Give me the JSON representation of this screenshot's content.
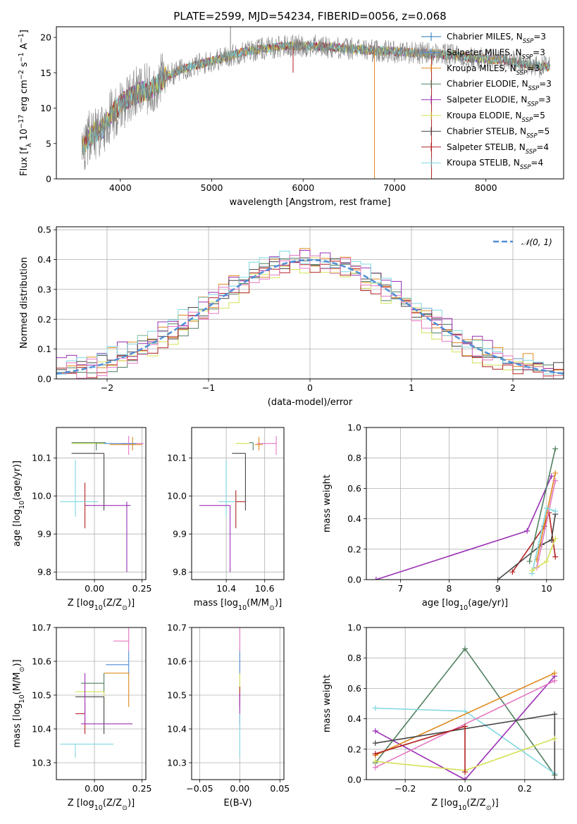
{
  "colors": {
    "chabrier_miles": "#1f77b4",
    "salpeter_miles": "#4f8ed6",
    "kroupa_miles": "#e08a1e",
    "chabrier_elodie": "#4f7f5f",
    "salpeter_elodie": "#9b30b5",
    "kroupa_elodie": "#d4e157",
    "chabrier_stelib": "#474747",
    "salpeter_stelib": "#b22222",
    "kroupa_stelib": "#7fd8e0",
    "pink": "#e377c2",
    "grey": "#7f7f7f",
    "normal": "#4f8ed6",
    "grid": "#b0b0b0"
  },
  "chart_data": [
    {
      "id": "spectrum",
      "type": "line",
      "title": "PLATE=2599, MJD=54234, FIBERID=0056, z=0.068",
      "xlabel": "wavelength [Angstrom, rest frame]",
      "ylabel": "Flux [f_λ 10^-17 erg cm^-2 s^-1 A^-1]",
      "xlim": [
        3300,
        8850
      ],
      "ylim": [
        0,
        21.5
      ],
      "xticks": [
        4000,
        5000,
        6000,
        7000,
        8000
      ],
      "yticks": [
        0,
        5,
        10,
        15,
        20
      ],
      "grid": false,
      "legend_position": "top-right",
      "legend": [
        {
          "name": "Chabrier MILES",
          "sub": "SSP",
          "n": "3",
          "color": "chabrier_miles"
        },
        {
          "name": "Salpeter MILES",
          "sub": "SSP",
          "n": "3",
          "color": "salpeter_miles"
        },
        {
          "name": "Kroupa MILES",
          "sub": "SSP",
          "n": "3",
          "color": "kroupa_miles"
        },
        {
          "name": "Chabrier ELODIE",
          "sub": "SSP",
          "n": "3",
          "color": "chabrier_elodie"
        },
        {
          "name": "Salpeter ELODIE",
          "sub": "SSP",
          "n": "3",
          "color": "salpeter_elodie"
        },
        {
          "name": "Kroupa ELODIE",
          "sub": "SSP",
          "n": "5",
          "color": "kroupa_elodie"
        },
        {
          "name": "Chabrier STELIB",
          "sub": "SSP",
          "n": "5",
          "color": "chabrier_stelib"
        },
        {
          "name": "Salpeter STELIB",
          "sub": "SSP",
          "n": "4",
          "color": "salpeter_stelib"
        },
        {
          "name": "Kroupa STELIB",
          "sub": "SSP",
          "n": "4",
          "color": "kroupa_stelib"
        }
      ],
      "continuum": [
        [
          3580,
          4.5
        ],
        [
          3700,
          6.5
        ],
        [
          3800,
          7.0
        ],
        [
          3900,
          9.0
        ],
        [
          4000,
          10.5
        ],
        [
          4100,
          11.5
        ],
        [
          4200,
          12.2
        ],
        [
          4300,
          12.5
        ],
        [
          4400,
          13.3
        ],
        [
          4500,
          14.5
        ],
        [
          4700,
          15.6
        ],
        [
          4900,
          16.3
        ],
        [
          5100,
          17.0
        ],
        [
          5300,
          17.8
        ],
        [
          5500,
          18.3
        ],
        [
          5800,
          18.8
        ],
        [
          6100,
          18.8
        ],
        [
          6400,
          18.5
        ],
        [
          6700,
          18.2
        ],
        [
          7000,
          18.0
        ],
        [
          7300,
          17.8
        ],
        [
          7600,
          17.5
        ],
        [
          7900,
          17.0
        ],
        [
          8200,
          16.8
        ],
        [
          8500,
          16.0
        ],
        [
          8700,
          15.8
        ]
      ],
      "absorption_lines": [
        {
          "x": 5205,
          "top": 21.5,
          "color": "grey"
        },
        {
          "x": 5890,
          "top": 15.0,
          "color": "salpeter_stelib"
        },
        {
          "x": 6780,
          "top": 0,
          "color": "kroupa_miles"
        },
        {
          "x": 7405,
          "top": 0,
          "color": "salpeter_stelib"
        }
      ]
    },
    {
      "id": "residuals",
      "type": "histogram",
      "xlabel": "(data-model)/error",
      "ylabel": "Normed distribution",
      "xlim": [
        -2.5,
        2.5
      ],
      "ylim": [
        0,
        0.51
      ],
      "xticks": [
        -2,
        -1,
        0,
        1,
        2
      ],
      "yticks": [
        0.0,
        0.1,
        0.2,
        0.3,
        0.4,
        0.5
      ],
      "grid": true,
      "legend_position": "top-right",
      "reference_curve": {
        "label": "𝒩(0, 1)",
        "mean": 0,
        "sigma": 1,
        "style": "dashed",
        "color": "normal"
      },
      "bin_width": 0.1,
      "series": [
        {
          "color": "kroupa_miles",
          "offset": 0.012
        },
        {
          "color": "chabrier_elodie",
          "offset": -0.008
        },
        {
          "color": "salpeter_elodie",
          "offset": 0.02
        },
        {
          "color": "kroupa_elodie",
          "offset": -0.018
        },
        {
          "color": "chabrier_stelib",
          "offset": 0.005
        },
        {
          "color": "salpeter_stelib",
          "offset": -0.012
        },
        {
          "color": "kroupa_stelib",
          "offset": 0.016
        },
        {
          "color": "pink",
          "offset": -0.004
        }
      ]
    },
    {
      "id": "age_vs_Z",
      "type": "errorbar",
      "xlabel": "Z [log10(Z/Z☉)]",
      "ylabel": "age [log10(age/yr)]",
      "xlim": [
        -0.2,
        0.27
      ],
      "ylim": [
        9.78,
        10.18
      ],
      "xticks": [
        0.0,
        0.25
      ],
      "yticks": [
        9.8,
        9.9,
        10.0,
        10.1
      ],
      "grid": true,
      "points": [
        {
          "x": 0.2,
          "xerr": [
            0.12,
            0.05
          ],
          "y": 10.135,
          "yerr": [
            0.015,
            0.02
          ],
          "color": "kroupa_miles"
        },
        {
          "x": 0.18,
          "xerr": [
            0.04,
            0.08
          ],
          "y": 10.138,
          "yerr": [
            0.03,
            0.02
          ],
          "color": "pink"
        },
        {
          "x": 0.1,
          "xerr": [
            0.08,
            0.12
          ],
          "y": 10.138,
          "yerr": [
            0.0,
            0.0
          ],
          "color": "salpeter_miles"
        },
        {
          "x": 0.05,
          "xerr": [
            0.17,
            0.0
          ],
          "y": 10.138,
          "yerr": [
            0.0,
            0.0
          ],
          "color": "kroupa_elodie"
        },
        {
          "x": 0.01,
          "xerr": [
            0.13,
            0.05
          ],
          "y": 10.14,
          "yerr": [
            0.02,
            0.0
          ],
          "color": "chabrier_elodie"
        },
        {
          "x": 0.05,
          "xerr": [
            0.17,
            0.0
          ],
          "y": 10.112,
          "yerr": [
            0.15,
            0.0
          ],
          "color": "chabrier_stelib"
        },
        {
          "x": -0.05,
          "xerr": [
            0.0,
            0.0
          ],
          "y": 9.975,
          "yerr": [
            0.06,
            0.06
          ],
          "color": "salpeter_stelib"
        },
        {
          "x": -0.1,
          "xerr": [
            0.08,
            0.12
          ],
          "y": 9.985,
          "yerr": [
            0.04,
            0.11
          ],
          "color": "kroupa_stelib"
        },
        {
          "x": 0.17,
          "xerr": [
            0.22,
            0.02
          ],
          "y": 9.975,
          "yerr": [
            0.175,
            0.01
          ],
          "color": "salpeter_elodie"
        }
      ]
    },
    {
      "id": "age_vs_mass",
      "type": "errorbar",
      "xlabel": "mass [log10(M/M☉)]",
      "ylabel": "",
      "xlim": [
        10.22,
        10.7
      ],
      "ylim": [
        9.78,
        10.18
      ],
      "xticks": [
        10.4,
        10.6
      ],
      "yticks": [
        9.8,
        9.9,
        10.0,
        10.1
      ],
      "grid": true,
      "points": [
        {
          "x": 10.57,
          "xerr": [
            0.02,
            0.02
          ],
          "y": 10.135,
          "yerr": [
            0.015,
            0.02
          ],
          "color": "kroupa_miles"
        },
        {
          "x": 10.66,
          "xerr": [
            0.1,
            0.0
          ],
          "y": 10.138,
          "yerr": [
            0.03,
            0.02
          ],
          "color": "pink"
        },
        {
          "x": 10.59,
          "xerr": [
            0.0,
            0.0
          ],
          "y": 10.138,
          "yerr": [
            0.0,
            0.0
          ],
          "color": "salpeter_miles"
        },
        {
          "x": 10.52,
          "xerr": [
            0.07,
            0.0
          ],
          "y": 10.138,
          "yerr": [
            0.0,
            0.0
          ],
          "color": "kroupa_elodie"
        },
        {
          "x": 10.54,
          "xerr": [
            0.02,
            0.0
          ],
          "y": 10.14,
          "yerr": [
            0.02,
            0.0
          ],
          "color": "chabrier_elodie"
        },
        {
          "x": 10.5,
          "xerr": [
            0.07,
            0.0
          ],
          "y": 10.112,
          "yerr": [
            0.15,
            0.0
          ],
          "color": "chabrier_stelib"
        },
        {
          "x": 10.45,
          "xerr": [
            0.0,
            0.05
          ],
          "y": 9.985,
          "yerr": [
            0.07,
            0.03
          ],
          "color": "salpeter_stelib"
        },
        {
          "x": 10.4,
          "xerr": [
            0.04,
            0.05
          ],
          "y": 9.985,
          "yerr": [
            0.04,
            0.11
          ],
          "color": "kroupa_stelib"
        },
        {
          "x": 10.42,
          "xerr": [
            0.16,
            0.0
          ],
          "y": 9.975,
          "yerr": [
            0.175,
            0.0
          ],
          "color": "salpeter_elodie"
        }
      ]
    },
    {
      "id": "massweight_vs_age",
      "type": "line",
      "xlabel": "age [log10(age/yr)]",
      "ylabel": "mass weight",
      "xlim": [
        6.3,
        10.35
      ],
      "ylim": [
        0,
        1.0
      ],
      "xticks": [
        7,
        8,
        9,
        10
      ],
      "yticks": [
        0.0,
        0.2,
        0.4,
        0.6,
        0.8,
        1.0
      ],
      "grid": true,
      "series": [
        {
          "color": "salpeter_elodie",
          "x": [
            6.5,
            9.6,
            10.1
          ],
          "y": [
            0.0,
            0.32,
            0.68
          ]
        },
        {
          "color": "salpeter_stelib",
          "x": [
            9.3,
            9.95,
            10.05,
            10.18
          ],
          "y": [
            0.05,
            0.35,
            0.44,
            0.15
          ]
        },
        {
          "color": "chabrier_stelib",
          "x": [
            9.0,
            9.9,
            10.1,
            10.18
          ],
          "y": [
            0.0,
            0.23,
            0.26,
            0.43
          ]
        },
        {
          "color": "chabrier_elodie",
          "x": [
            9.65,
            10.18
          ],
          "y": [
            0.12,
            0.86
          ]
        },
        {
          "color": "kroupa_miles",
          "x": [
            9.8,
            10.18
          ],
          "y": [
            0.13,
            0.7
          ]
        },
        {
          "color": "pink",
          "x": [
            9.8,
            10.18
          ],
          "y": [
            0.08,
            0.65
          ]
        },
        {
          "color": "kroupa_stelib",
          "x": [
            9.7,
            10.0,
            10.18
          ],
          "y": [
            0.04,
            0.47,
            0.45
          ]
        },
        {
          "color": "kroupa_elodie",
          "x": [
            9.7,
            10.0,
            10.18
          ],
          "y": [
            0.06,
            0.12,
            0.27
          ]
        }
      ]
    },
    {
      "id": "mass_vs_Z",
      "type": "errorbar",
      "xlabel": "Z [log10(Z/Z☉)]",
      "ylabel": "mass [log10(M/M☉)]",
      "xlim": [
        -0.2,
        0.27
      ],
      "ylim": [
        10.25,
        10.7
      ],
      "xticks": [
        0.0,
        0.25
      ],
      "yticks": [
        10.3,
        10.4,
        10.5,
        10.6,
        10.7
      ],
      "grid": true,
      "points": [
        {
          "x": 0.18,
          "xerr": [
            0.08,
            0.0
          ],
          "y": 10.66,
          "yerr": [
            0.03,
            0.04
          ],
          "color": "pink"
        },
        {
          "x": 0.18,
          "xerr": [
            0.12,
            0.0
          ],
          "y": 10.59,
          "yerr": [
            0.03,
            0.04
          ],
          "color": "salpeter_miles"
        },
        {
          "x": 0.18,
          "xerr": [
            0.13,
            0.0
          ],
          "y": 10.565,
          "yerr": [
            0.1,
            0.0
          ],
          "color": "kroupa_miles"
        },
        {
          "x": 0.05,
          "xerr": [
            0.12,
            0.0
          ],
          "y": 10.535,
          "yerr": [
            0.03,
            0.03
          ],
          "color": "chabrier_elodie"
        },
        {
          "x": 0.05,
          "xerr": [
            0.15,
            0.0
          ],
          "y": 10.51,
          "yerr": [
            0.03,
            0.0
          ],
          "color": "kroupa_elodie"
        },
        {
          "x": 0.05,
          "xerr": [
            0.15,
            0.0
          ],
          "y": 10.495,
          "yerr": [
            0.11,
            0.0
          ],
          "color": "chabrier_stelib"
        },
        {
          "x": -0.05,
          "xerr": [
            0.05,
            0.0
          ],
          "y": 10.445,
          "yerr": [
            0.06,
            0.03
          ],
          "color": "salpeter_stelib"
        },
        {
          "x": -0.05,
          "xerr": [
            0.02,
            0.25
          ],
          "y": 10.415,
          "yerr": [
            0.0,
            0.15
          ],
          "color": "salpeter_elodie"
        },
        {
          "x": -0.1,
          "xerr": [
            0.08,
            0.2
          ],
          "y": 10.355,
          "yerr": [
            0.04,
            0.0
          ],
          "color": "kroupa_stelib"
        }
      ]
    },
    {
      "id": "mass_vs_ebv",
      "type": "errorbar",
      "xlabel": "E(B-V)",
      "ylabel": "",
      "xlim": [
        -0.06,
        0.055
      ],
      "ylim": [
        10.25,
        10.7
      ],
      "xticks": [
        -0.05,
        0.0,
        0.05
      ],
      "yticks": [
        10.3,
        10.4,
        10.5,
        10.6,
        10.7
      ],
      "grid": true,
      "points": [
        {
          "x": 0.0,
          "xerr": [
            0,
            0
          ],
          "y": 10.66,
          "yerr": [
            0.03,
            0.04
          ],
          "color": "pink"
        },
        {
          "x": 0.0,
          "xerr": [
            0,
            0
          ],
          "y": 10.59,
          "yerr": [
            0.03,
            0.04
          ],
          "color": "salpeter_miles"
        },
        {
          "x": 0.0,
          "xerr": [
            0,
            0
          ],
          "y": 10.535,
          "yerr": [
            0.03,
            0.03
          ],
          "color": "kroupa_elodie"
        },
        {
          "x": 0.0,
          "xerr": [
            0,
            0
          ],
          "y": 10.495,
          "yerr": [
            0.03,
            0.03
          ],
          "color": "salpeter_stelib"
        },
        {
          "x": 0.0,
          "xerr": [
            0,
            0
          ],
          "y": 10.415,
          "yerr": [
            0.0,
            0.09
          ],
          "color": "salpeter_elodie"
        },
        {
          "x": 0.0,
          "xerr": [
            0,
            0
          ],
          "y": 10.355,
          "yerr": [
            0.04,
            0.09
          ],
          "color": "kroupa_stelib"
        }
      ]
    },
    {
      "id": "massweight_vs_Z",
      "type": "line",
      "xlabel": "Z [log10(Z/Z☉)]",
      "ylabel": "mass weight",
      "xlim": [
        -0.33,
        0.33
      ],
      "ylim": [
        0,
        1.0
      ],
      "xticks": [
        -0.2,
        0.0,
        0.2
      ],
      "yticks": [
        0.0,
        0.2,
        0.4,
        0.6,
        0.8,
        1.0
      ],
      "grid": true,
      "series": [
        {
          "color": "chabrier_elodie",
          "x": [
            -0.3,
            0.0,
            0.3
          ],
          "y": [
            0.11,
            0.86,
            0.03
          ]
        },
        {
          "color": "kroupa_stelib",
          "x": [
            -0.3,
            0.0,
            0.3
          ],
          "y": [
            0.47,
            0.45,
            0.04
          ]
        },
        {
          "color": "salpeter_elodie",
          "x": [
            -0.3,
            0.0,
            0.3
          ],
          "y": [
            0.32,
            0.0,
            0.68
          ]
        },
        {
          "color": "kroupa_miles",
          "x": [
            -0.3,
            0.3
          ],
          "y": [
            0.16,
            0.7
          ]
        },
        {
          "color": "pink",
          "x": [
            -0.3,
            0.3
          ],
          "y": [
            0.08,
            0.65
          ]
        },
        {
          "color": "chabrier_stelib",
          "x": [
            -0.3,
            0.3,
            0.3
          ],
          "y": [
            0.24,
            0.43,
            0.0
          ]
        },
        {
          "color": "kroupa_elodie",
          "x": [
            -0.3,
            0.0,
            0.3
          ],
          "y": [
            0.12,
            0.06,
            0.27
          ]
        },
        {
          "color": "salpeter_stelib",
          "x": [
            -0.3,
            0.0,
            0.0
          ],
          "y": [
            0.17,
            0.35,
            0.05
          ]
        }
      ]
    }
  ]
}
